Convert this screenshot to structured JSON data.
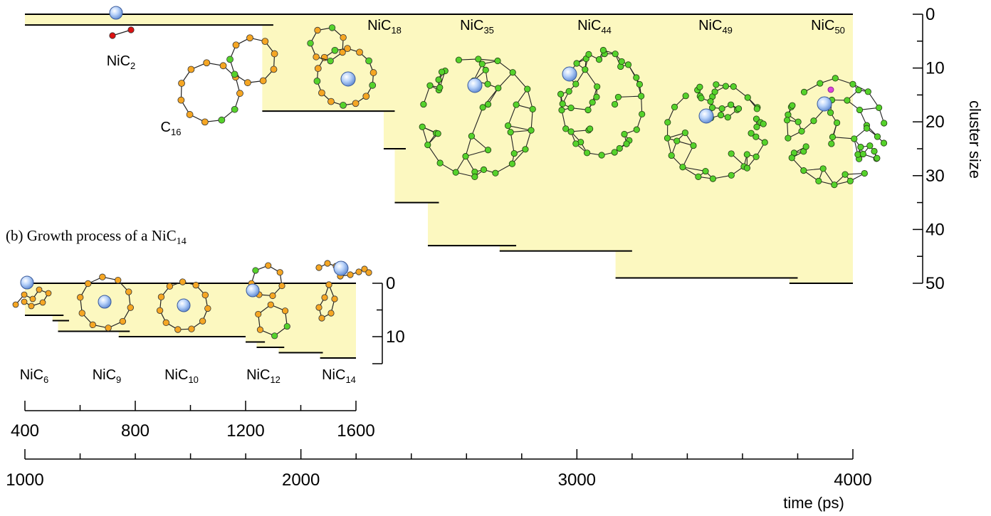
{
  "chart_data": [
    {
      "type": "area",
      "panel": "a",
      "xlabel": "time (ps)",
      "ylabel": "cluster size",
      "xlim": [
        1000,
        4000
      ],
      "ylim": [
        0,
        50
      ],
      "y_inverted": true,
      "x_ticks": [
        1000,
        2000,
        3000,
        4000
      ],
      "y_ticks": [
        0,
        10,
        20,
        30,
        40,
        50
      ],
      "series": [
        {
          "values": [
            {
              "x": [
                1000,
                1900
              ],
              "y": 2
            },
            {
              "x": [
                1860,
                2340
              ],
              "y": 18
            },
            {
              "x": [
                2300,
                2380
              ],
              "y": 25
            },
            {
              "x": [
                2340,
                2500
              ],
              "y": 35
            },
            {
              "x": [
                2460,
                2780
              ],
              "y": 43
            },
            {
              "x": [
                2720,
                3200
              ],
              "y": 44
            },
            {
              "x": [
                3140,
                3800
              ],
              "y": 49
            },
            {
              "x": [
                3770,
                4000
              ],
              "y": 50
            }
          ]
        }
      ],
      "annotations": [
        {
          "text": "NiC",
          "sub": "2"
        },
        {
          "text": "C",
          "sub": "16"
        },
        {
          "text": "NiC",
          "sub": "18"
        },
        {
          "text": "NiC",
          "sub": "35"
        },
        {
          "text": "NiC",
          "sub": "44"
        },
        {
          "text": "NiC",
          "sub": "49"
        },
        {
          "text": "NiC",
          "sub": "50"
        }
      ]
    },
    {
      "type": "area",
      "panel": "b",
      "title": "(b) Growth process of a NiC",
      "title_sub": "14",
      "xlim": [
        400,
        1600
      ],
      "ylim": [
        0,
        14
      ],
      "y_inverted": true,
      "x_ticks": [
        400,
        800,
        1200,
        1600
      ],
      "y_ticks": [
        0,
        10
      ],
      "series": [
        {
          "values": [
            {
              "x": [
                400,
                540
              ],
              "y": 6
            },
            {
              "x": [
                500,
                560
              ],
              "y": 7
            },
            {
              "x": [
                520,
                780
              ],
              "y": 9
            },
            {
              "x": [
                740,
                1200
              ],
              "y": 10
            },
            {
              "x": [
                1200,
                1270
              ],
              "y": 11
            },
            {
              "x": [
                1240,
                1340
              ],
              "y": 12
            },
            {
              "x": [
                1320,
                1480
              ],
              "y": 13
            },
            {
              "x": [
                1470,
                1600
              ],
              "y": 14
            }
          ]
        }
      ],
      "annotations": [
        {
          "text": "NiC",
          "sub": "6"
        },
        {
          "text": "NiC",
          "sub": "9"
        },
        {
          "text": "NiC",
          "sub": "10"
        },
        {
          "text": "NiC",
          "sub": "12"
        },
        {
          "text": "NiC",
          "sub": "14"
        }
      ]
    }
  ],
  "colors": {
    "fill": "#fcf8c0",
    "carbon_orange": "#f5a623",
    "carbon_green": "#55d22b",
    "nickel": "#aac8f5",
    "dimer_red": "#dd1111",
    "h_magenta": "#dd44dd"
  }
}
